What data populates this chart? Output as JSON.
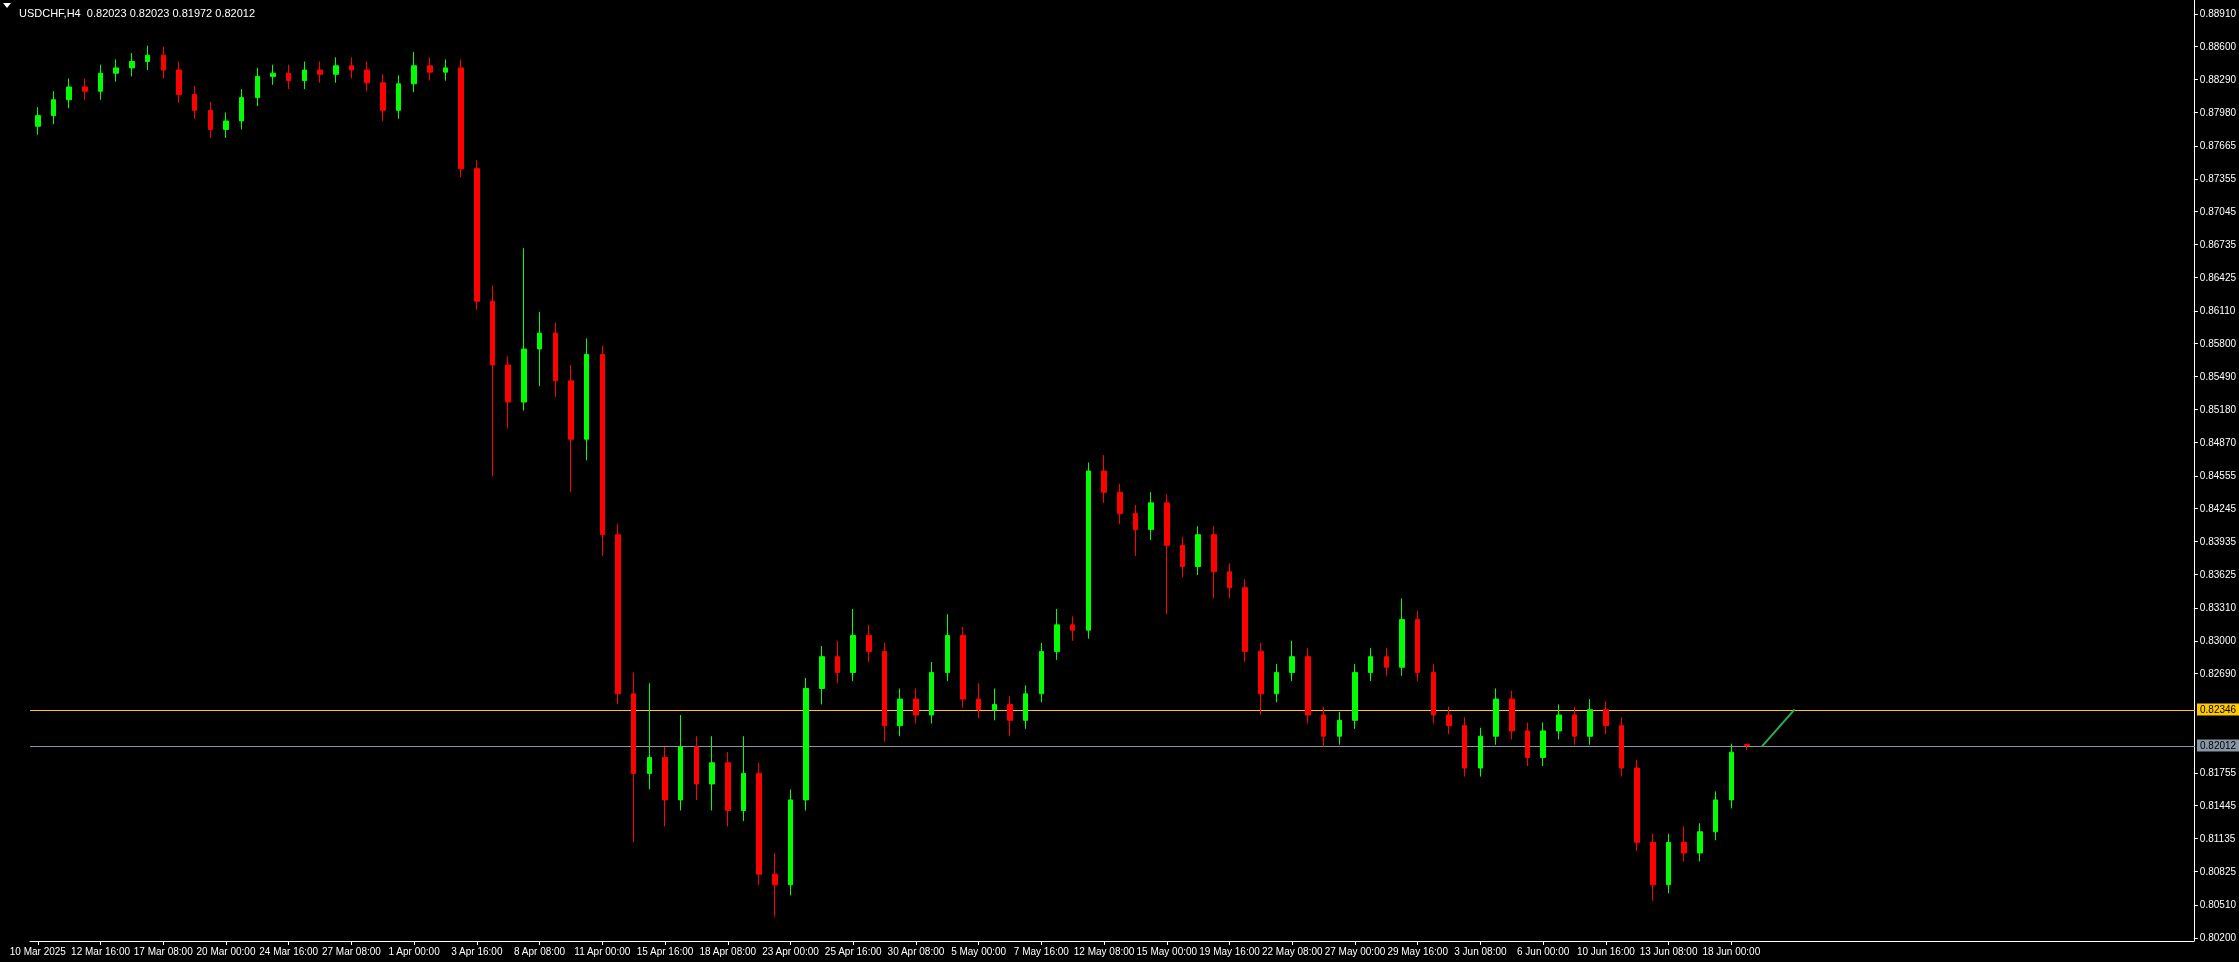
{
  "chart_data": {
    "type": "candlestick",
    "title": "USDCHF,H4  0.82023 0.82023 0.81972 0.82012",
    "categories": [
      "10 Mar 2025",
      null,
      null,
      null,
      "12 Mar 16:00",
      null,
      null,
      null,
      "17 Mar 08:00",
      null,
      null,
      null,
      "20 Mar 00:00",
      null,
      null,
      null,
      "24 Mar 16:00",
      null,
      null,
      null,
      "27 Mar 08:00",
      null,
      null,
      null,
      "1 Apr 00:00",
      null,
      null,
      null,
      "3 Apr 16:00",
      null,
      null,
      null,
      "8 Apr 08:00",
      null,
      null,
      null,
      "11 Apr 00:00",
      null,
      null,
      null,
      "15 Apr 16:00",
      null,
      null,
      null,
      "18 Apr 08:00",
      null,
      null,
      null,
      "23 Apr 00:00",
      null,
      null,
      null,
      "25 Apr 16:00",
      null,
      null,
      null,
      "30 Apr 08:00",
      null,
      null,
      null,
      "5 May 00:00",
      null,
      null,
      null,
      "7 May 16:00",
      null,
      null,
      null,
      "12 May 08:00",
      null,
      null,
      null,
      "15 May 00:00",
      null,
      null,
      null,
      "19 May 16:00",
      null,
      null,
      null,
      "22 May 08:00",
      null,
      null,
      null,
      "27 May 00:00",
      null,
      null,
      null,
      "29 May 16:00",
      null,
      null,
      null,
      "3 Jun 08:00",
      null,
      null,
      null,
      "6 Jun 00:00",
      null,
      null,
      null,
      "10 Jun 16:00",
      null,
      null,
      null,
      "13 Jun 08:00",
      null,
      null,
      null,
      "18 Jun 00:00",
      null,
      null,
      null,
      null,
      null,
      null,
      null,
      null,
      null,
      null,
      null,
      null,
      null,
      null,
      null,
      null,
      null,
      null,
      null,
      null,
      null,
      null,
      null,
      null,
      null,
      null,
      null,
      null,
      null
    ],
    "ohlc": [
      [
        0.8785,
        0.8803,
        0.8777,
        0.8795
      ],
      [
        0.8795,
        0.8818,
        0.8787,
        0.881
      ],
      [
        0.881,
        0.883,
        0.8802,
        0.8822
      ],
      [
        0.8822,
        0.883,
        0.881,
        0.8818
      ],
      [
        0.8818,
        0.8843,
        0.881,
        0.8835
      ],
      [
        0.8835,
        0.8848,
        0.8827,
        0.884
      ],
      [
        0.884,
        0.8854,
        0.8832,
        0.8846
      ],
      [
        0.8846,
        0.8861,
        0.8838,
        0.8852
      ],
      [
        0.8852,
        0.886,
        0.883,
        0.8838
      ],
      [
        0.8838,
        0.8846,
        0.8807,
        0.8815
      ],
      [
        0.8815,
        0.8823,
        0.8792,
        0.88
      ],
      [
        0.88,
        0.8808,
        0.8774,
        0.8782
      ],
      [
        0.8782,
        0.8798,
        0.8774,
        0.879
      ],
      [
        0.879,
        0.882,
        0.8782,
        0.8812
      ],
      [
        0.8812,
        0.884,
        0.8804,
        0.8832
      ],
      [
        0.8832,
        0.8843,
        0.8824,
        0.8835
      ],
      [
        0.8835,
        0.8843,
        0.882,
        0.8828
      ],
      [
        0.8828,
        0.8846,
        0.882,
        0.8838
      ],
      [
        0.8838,
        0.8846,
        0.8826,
        0.8834
      ],
      [
        0.8834,
        0.885,
        0.8826,
        0.8842
      ],
      [
        0.8842,
        0.885,
        0.883,
        0.8838
      ],
      [
        0.8838,
        0.8846,
        0.8818,
        0.8826
      ],
      [
        0.8826,
        0.8834,
        0.879,
        0.88
      ],
      [
        0.88,
        0.8833,
        0.8792,
        0.8825
      ],
      [
        0.8825,
        0.8855,
        0.8817,
        0.8842
      ],
      [
        0.8842,
        0.885,
        0.8828,
        0.8836
      ],
      [
        0.8836,
        0.8848,
        0.8828,
        0.884
      ],
      [
        0.884,
        0.8848,
        0.8737,
        0.8745
      ],
      [
        0.8745,
        0.8753,
        0.8612,
        0.862
      ],
      [
        0.862,
        0.8635,
        0.8455,
        0.856
      ],
      [
        0.856,
        0.8568,
        0.85,
        0.8525
      ],
      [
        0.8525,
        0.867,
        0.8517,
        0.8575
      ],
      [
        0.8575,
        0.861,
        0.854,
        0.859
      ],
      [
        0.859,
        0.86,
        0.853,
        0.8545
      ],
      [
        0.8545,
        0.856,
        0.844,
        0.849
      ],
      [
        0.849,
        0.8585,
        0.847,
        0.857
      ],
      [
        0.857,
        0.8578,
        0.838,
        0.84
      ],
      [
        0.84,
        0.841,
        0.824,
        0.825
      ],
      [
        0.825,
        0.827,
        0.811,
        0.8175
      ],
      [
        0.8175,
        0.826,
        0.816,
        0.819
      ],
      [
        0.819,
        0.82,
        0.8125,
        0.815
      ],
      [
        0.815,
        0.823,
        0.814,
        0.82
      ],
      [
        0.82,
        0.821,
        0.815,
        0.8165
      ],
      [
        0.8165,
        0.821,
        0.814,
        0.8185
      ],
      [
        0.8185,
        0.8195,
        0.8125,
        0.814
      ],
      [
        0.814,
        0.821,
        0.813,
        0.8175
      ],
      [
        0.8175,
        0.8185,
        0.807,
        0.808
      ],
      [
        0.808,
        0.81,
        0.804,
        0.807
      ],
      [
        0.807,
        0.816,
        0.806,
        0.815
      ],
      [
        0.815,
        0.8265,
        0.814,
        0.8255
      ],
      [
        0.8255,
        0.8295,
        0.824,
        0.8285
      ],
      [
        0.8285,
        0.83,
        0.826,
        0.827
      ],
      [
        0.827,
        0.833,
        0.8262,
        0.8305
      ],
      [
        0.8305,
        0.8315,
        0.828,
        0.829
      ],
      [
        0.829,
        0.8298,
        0.8205,
        0.822
      ],
      [
        0.822,
        0.8255,
        0.821,
        0.8245
      ],
      [
        0.8245,
        0.8255,
        0.8222,
        0.823
      ],
      [
        0.823,
        0.828,
        0.8222,
        0.827
      ],
      [
        0.827,
        0.8325,
        0.8262,
        0.8305
      ],
      [
        0.8305,
        0.8313,
        0.8237,
        0.8245
      ],
      [
        0.8245,
        0.826,
        0.8227,
        0.8235
      ],
      [
        0.8235,
        0.8255,
        0.8225,
        0.824
      ],
      [
        0.824,
        0.8248,
        0.821,
        0.8225
      ],
      [
        0.8225,
        0.8258,
        0.8217,
        0.825
      ],
      [
        0.825,
        0.8298,
        0.8242,
        0.829
      ],
      [
        0.829,
        0.833,
        0.8282,
        0.8315
      ],
      [
        0.8315,
        0.8323,
        0.83,
        0.831
      ],
      [
        0.831,
        0.8468,
        0.8302,
        0.846
      ],
      [
        0.846,
        0.8475,
        0.843,
        0.844
      ],
      [
        0.844,
        0.8448,
        0.841,
        0.842
      ],
      [
        0.842,
        0.8428,
        0.838,
        0.8405
      ],
      [
        0.8405,
        0.844,
        0.8395,
        0.843
      ],
      [
        0.843,
        0.8438,
        0.8325,
        0.839
      ],
      [
        0.839,
        0.8398,
        0.836,
        0.837
      ],
      [
        0.837,
        0.8408,
        0.8362,
        0.84
      ],
      [
        0.84,
        0.8408,
        0.834,
        0.8365
      ],
      [
        0.8365,
        0.8373,
        0.834,
        0.835
      ],
      [
        0.835,
        0.8358,
        0.828,
        0.829
      ],
      [
        0.829,
        0.8298,
        0.823,
        0.825
      ],
      [
        0.825,
        0.8278,
        0.8242,
        0.827
      ],
      [
        0.827,
        0.83,
        0.8262,
        0.8285
      ],
      [
        0.8285,
        0.8293,
        0.8222,
        0.823
      ],
      [
        0.823,
        0.8238,
        0.82,
        0.821
      ],
      [
        0.821,
        0.8233,
        0.8202,
        0.8225
      ],
      [
        0.8225,
        0.8278,
        0.8217,
        0.827
      ],
      [
        0.827,
        0.8293,
        0.8262,
        0.8285
      ],
      [
        0.8285,
        0.8293,
        0.8267,
        0.8275
      ],
      [
        0.8275,
        0.834,
        0.8267,
        0.832
      ],
      [
        0.832,
        0.8328,
        0.8262,
        0.827
      ],
      [
        0.827,
        0.8278,
        0.8222,
        0.823
      ],
      [
        0.823,
        0.8238,
        0.8212,
        0.822
      ],
      [
        0.822,
        0.8228,
        0.8172,
        0.818
      ],
      [
        0.818,
        0.8218,
        0.8172,
        0.821
      ],
      [
        0.821,
        0.8255,
        0.8202,
        0.8245
      ],
      [
        0.8245,
        0.8253,
        0.8207,
        0.8215
      ],
      [
        0.8215,
        0.8223,
        0.8182,
        0.819
      ],
      [
        0.819,
        0.8223,
        0.8182,
        0.8215
      ],
      [
        0.8215,
        0.824,
        0.8207,
        0.823
      ],
      [
        0.823,
        0.8238,
        0.8202,
        0.821
      ],
      [
        0.821,
        0.8245,
        0.8202,
        0.8235
      ],
      [
        0.8235,
        0.8243,
        0.8212,
        0.822
      ],
      [
        0.822,
        0.8228,
        0.8172,
        0.818
      ],
      [
        0.818,
        0.8188,
        0.8102,
        0.811
      ],
      [
        0.811,
        0.8118,
        0.8055,
        0.807
      ],
      [
        0.807,
        0.8118,
        0.8062,
        0.811
      ],
      [
        0.811,
        0.8125,
        0.8092,
        0.81
      ],
      [
        0.81,
        0.8128,
        0.8092,
        0.812
      ],
      [
        0.812,
        0.8158,
        0.8112,
        0.815
      ],
      [
        0.815,
        0.8203,
        0.8142,
        0.8195
      ],
      [
        0.82023,
        0.82023,
        0.81972,
        0.82012
      ],
      null,
      null,
      null,
      null,
      null,
      null,
      null,
      null,
      null,
      null,
      null,
      null,
      null,
      null,
      null,
      null,
      null,
      null,
      null,
      null,
      null,
      null,
      null,
      null,
      null,
      null,
      null,
      null
    ],
    "colors": [
      "#00ff00",
      "#00ff00",
      "#00ff00",
      "#ff0000",
      "#00ff00",
      "#00ff00",
      "#00ff00",
      "#00ff00",
      "#ff0000",
      "#ff0000",
      "#ff0000",
      "#ff0000",
      "#00ff00",
      "#00ff00",
      "#00ff00",
      "#00ff00",
      "#ff0000",
      "#00ff00",
      "#ff0000",
      "#00ff00",
      "#ff0000",
      "#ff0000",
      "#ff0000",
      "#00ff00",
      "#00ff00",
      "#ff0000",
      "#00ff00",
      "#ff0000",
      "#ff0000",
      "#ff0000",
      "#ff0000",
      "#00ff00",
      "#00ff00",
      "#ff0000",
      "#ff0000",
      "#00ff00",
      "#ff0000",
      "#ff0000",
      "#ff0000",
      "#00ff00",
      "#ff0000",
      "#00ff00",
      "#ff0000",
      "#00ff00",
      "#ff0000",
      "#00ff00",
      "#ff0000",
      "#ff0000",
      "#00ff00",
      "#00ff00",
      "#00ff00",
      "#ff0000",
      "#00ff00",
      "#ff0000",
      "#ff0000",
      "#00ff00",
      "#ff0000",
      "#00ff00",
      "#00ff00",
      "#ff0000",
      "#ff0000",
      "#00ff00",
      "#ff0000",
      "#00ff00",
      "#00ff00",
      "#00ff00",
      "#ff0000",
      "#00ff00",
      "#ff0000",
      "#ff0000",
      "#ff0000",
      "#00ff00",
      "#ff0000",
      "#ff0000",
      "#00ff00",
      "#ff0000",
      "#ff0000",
      "#ff0000",
      "#ff0000",
      "#00ff00",
      "#00ff00",
      "#ff0000",
      "#ff0000",
      "#00ff00",
      "#00ff00",
      "#00ff00",
      "#ff0000",
      "#00ff00",
      "#ff0000",
      "#ff0000",
      "#ff0000",
      "#ff0000",
      "#00ff00",
      "#00ff00",
      "#ff0000",
      "#ff0000",
      "#00ff00",
      "#00ff00",
      "#ff0000",
      "#00ff00",
      "#ff0000",
      "#ff0000",
      "#ff0000",
      "#ff0000",
      "#00ff00",
      "#ff0000",
      "#00ff00",
      "#00ff00",
      "#00ff00",
      "#ff0000",
      null,
      null,
      null,
      null,
      null,
      null,
      null,
      null,
      null,
      null,
      null,
      null,
      null,
      null,
      null,
      null,
      null,
      null,
      null,
      null,
      null,
      null,
      null,
      null,
      null,
      null,
      null,
      null
    ],
    "series": [
      {
        "type": "line",
        "color": "#22b14c",
        "values": [
          null,
          null,
          null,
          null,
          null,
          null,
          null,
          null,
          null,
          null,
          null,
          null,
          null,
          null,
          null,
          null,
          null,
          null,
          null,
          null,
          null,
          null,
          null,
          null,
          null,
          null,
          null,
          null,
          null,
          null,
          null,
          null,
          null,
          null,
          null,
          null,
          null,
          null,
          null,
          null,
          null,
          null,
          null,
          null,
          null,
          null,
          null,
          null,
          null,
          null,
          null,
          null,
          null,
          null,
          null,
          null,
          null,
          null,
          null,
          null,
          null,
          null,
          null,
          null,
          null,
          null,
          null,
          null,
          null,
          null,
          null,
          null,
          null,
          null,
          null,
          null,
          null,
          null,
          null,
          null,
          null,
          null,
          null,
          null,
          null,
          null,
          null,
          null,
          null,
          null,
          null,
          null,
          null,
          null,
          null,
          null,
          null,
          null,
          null,
          null,
          null,
          null,
          null,
          null,
          null,
          null,
          null,
          null,
          null,
          null,
          0.82012,
          null,
          0.82346,
          null,
          null,
          null,
          null,
          null,
          null,
          null,
          null,
          null,
          null,
          null,
          null,
          null,
          null,
          null,
          null,
          null,
          null,
          null,
          null,
          null,
          null,
          null,
          null,
          null
        ]
      }
    ],
    "marker": "none",
    "ylim": [
      0.8017,
      0.8904
    ],
    "yticks": [
      {
        "value": 0.8891,
        "label": "0.88910"
      },
      {
        "value": 0.886,
        "label": "0.88600"
      },
      {
        "value": 0.8829,
        "label": "0.88290"
      },
      {
        "value": 0.8798,
        "label": "0.87980"
      },
      {
        "value": 0.87665,
        "label": "0.87665"
      },
      {
        "value": 0.87355,
        "label": "0.87355"
      },
      {
        "value": 0.87045,
        "label": "0.87045"
      },
      {
        "value": 0.86735,
        "label": "0.86735"
      },
      {
        "value": 0.86425,
        "label": "0.86425"
      },
      {
        "value": 0.8611,
        "label": "0.86110"
      },
      {
        "value": 0.858,
        "label": "0.85800"
      },
      {
        "value": 0.8549,
        "label": "0.85490"
      },
      {
        "value": 0.8518,
        "label": "0.85180"
      },
      {
        "value": 0.8487,
        "label": "0.84870"
      },
      {
        "value": 0.84555,
        "label": "0.84555"
      },
      {
        "value": 0.84245,
        "label": "0.84245"
      },
      {
        "value": 0.83935,
        "label": "0.83935"
      },
      {
        "value": 0.83625,
        "label": "0.83625"
      },
      {
        "value": 0.8331,
        "label": "0.83310"
      },
      {
        "value": 0.83,
        "label": "0.83000"
      },
      {
        "value": 0.8269,
        "label": "0.82690"
      },
      {
        "value": 0.81755,
        "label": "0.81755"
      },
      {
        "value": 0.81445,
        "label": "0.81445"
      },
      {
        "value": 0.81135,
        "label": "0.81135"
      },
      {
        "value": 0.80825,
        "label": "0.80825"
      },
      {
        "value": 0.8051,
        "label": "0.80510"
      },
      {
        "value": 0.802,
        "label": "0.80200"
      }
    ],
    "ref_lines": [
      {
        "axis": "y",
        "value": 0.82346,
        "label": "0.82346",
        "color": "#ffc800"
      },
      {
        "axis": "y",
        "value": 0.82012,
        "label": "0.82012",
        "color": "#8a96a6"
      }
    ],
    "grid": false
  }
}
